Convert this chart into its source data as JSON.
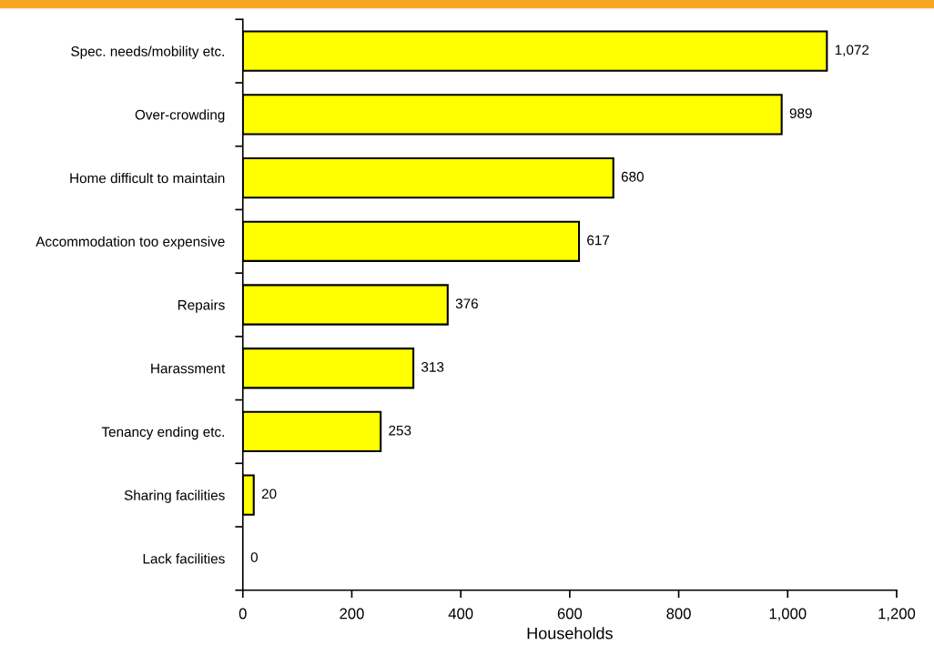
{
  "chart_data": {
    "type": "bar",
    "orientation": "horizontal",
    "xlabel": "Households",
    "categories": [
      "Spec. needs/mobility etc.",
      "Over-crowding",
      "Home difficult to maintain",
      "Accommodation too expensive",
      "Repairs",
      "Harassment",
      "Tenancy ending etc.",
      "Sharing facilities",
      "Lack facilities"
    ],
    "values": [
      1072,
      989,
      680,
      617,
      376,
      313,
      253,
      20,
      0
    ],
    "value_labels": [
      "1,072",
      "989",
      "680",
      "617",
      "376",
      "313",
      "253",
      "20",
      "0"
    ],
    "color": "#ffff00",
    "xlim": [
      0,
      1200
    ],
    "xticks": [
      0,
      200,
      400,
      600,
      800,
      {
        "value": 1000,
        "label": "1,000"
      },
      {
        "value": 1200,
        "label": "1,200"
      }
    ],
    "grid": false
  }
}
